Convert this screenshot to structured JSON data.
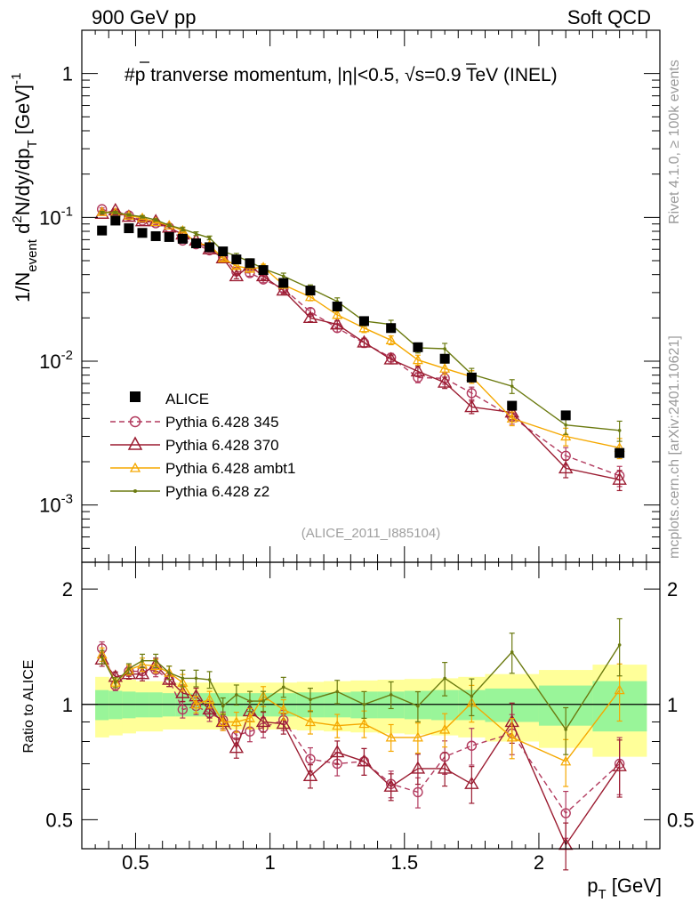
{
  "header": {
    "left": "900 GeV pp",
    "right": "Soft QCD"
  },
  "side_labels": {
    "rivet": "Rivet 4.1.0, ≥ 100k events",
    "site": "mcplots.cern.ch [arXiv:2401.10621]"
  },
  "colors": {
    "alice": "#000000",
    "p345": "#b23a5e",
    "p370": "#9b1c31",
    "ambt1": "#f5a800",
    "z2": "#6b7a10",
    "band_inner": "#99f599",
    "band_outer": "#ffff99"
  },
  "chart_data": [
    {
      "type": "scatter",
      "panel": "main",
      "title": "#p̄ tranverse momentum, |η|<0.5, √s=0.9 TeV (INEL)",
      "title_parts": [
        "#",
        "p",
        " tranverse momentum, ",
        "η",
        "|<0.5, ",
        "s",
        "=0.9 TeV (INEL)"
      ],
      "ylabel": "1/N_event d²N/dy/dp_T [GeV]⁻¹",
      "ylabel_parts": {
        "a": "1/N",
        "b": "event",
        "c": " d",
        "d": "2",
        "e": "N/dy/dp",
        "f": "T",
        "g": " [GeV]",
        "h": "-1"
      },
      "yscale": "log",
      "ylim": [
        0.0004,
        2
      ],
      "xlim": [
        0.3,
        2.45
      ],
      "y_ticks": [
        {
          "base": "10",
          "exp": "-3",
          "value": 0.001
        },
        {
          "base": "10",
          "exp": "-2",
          "value": 0.01
        },
        {
          "base": "10",
          "exp": "-1",
          "value": 0.1
        },
        {
          "base": "1",
          "exp": "",
          "value": 1
        }
      ],
      "watermark": "(ALICE_2011_I885104)",
      "legend_position": "lower-left",
      "x": [
        0.375,
        0.425,
        0.475,
        0.525,
        0.575,
        0.625,
        0.675,
        0.725,
        0.775,
        0.825,
        0.875,
        0.925,
        0.975,
        1.05,
        1.15,
        1.25,
        1.35,
        1.45,
        1.55,
        1.65,
        1.75,
        1.9,
        2.1,
        2.3
      ],
      "series": [
        {
          "name": "ALICE",
          "key": "alice",
          "style": "square",
          "values": [
            0.081,
            0.095,
            0.084,
            0.078,
            0.074,
            0.073,
            0.071,
            0.066,
            0.062,
            0.058,
            0.051,
            0.048,
            0.043,
            0.035,
            0.031,
            0.024,
            0.019,
            0.017,
            0.0125,
            0.0104,
            0.0077,
            0.0049,
            0.0042,
            0.0023
          ]
        },
        {
          "name": "Pythia 6.428 345",
          "key": "p345",
          "style": "circle-dashed",
          "values": [
            0.114,
            0.106,
            0.103,
            0.095,
            0.091,
            0.085,
            0.069,
            0.065,
            0.059,
            0.053,
            0.042,
            0.041,
            0.037,
            0.032,
            0.022,
            0.017,
            0.0134,
            0.0106,
            0.0077,
            0.0076,
            0.006,
            0.0041,
            0.0022,
            0.0016
          ]
        },
        {
          "name": "Pythia 6.428 370",
          "key": "p370",
          "style": "triangle-solid",
          "values": [
            0.106,
            0.112,
            0.101,
            0.094,
            0.094,
            0.085,
            0.076,
            0.069,
            0.06,
            0.052,
            0.039,
            0.046,
            0.039,
            0.031,
            0.02,
            0.018,
            0.0135,
            0.0103,
            0.0085,
            0.0071,
            0.0048,
            0.0044,
            0.0018,
            0.0015
          ]
        },
        {
          "name": "Pythia 6.428 ambt1",
          "key": "ambt1",
          "style": "triangle-solid",
          "values": [
            0.109,
            0.108,
            0.103,
            0.099,
            0.093,
            0.088,
            0.081,
            0.066,
            0.064,
            0.052,
            0.046,
            0.044,
            0.045,
            0.034,
            0.028,
            0.021,
            0.017,
            0.014,
            0.0102,
            0.0089,
            0.0078,
            0.004,
            0.003,
            0.0025
          ]
        },
        {
          "name": "Pythia 6.428 z2",
          "key": "z2",
          "style": "dot-solid",
          "values": [
            0.108,
            0.108,
            0.104,
            0.101,
            0.096,
            0.088,
            0.083,
            0.077,
            0.072,
            0.058,
            0.054,
            0.049,
            0.044,
            0.039,
            0.032,
            0.026,
            0.019,
            0.018,
            0.0124,
            0.0122,
            0.0081,
            0.0067,
            0.0036,
            0.0033
          ]
        }
      ],
      "legend": [
        "ALICE",
        "Pythia 6.428 345",
        "Pythia 6.428 370",
        "Pythia 6.428 ambt1",
        "Pythia 6.428 z2"
      ]
    },
    {
      "type": "line",
      "panel": "ratio",
      "ylabel": "Ratio to ALICE",
      "xlabel": "p_T [GeV]",
      "xlabel_parts": {
        "a": "p",
        "b": "T",
        "c": " [GeV]"
      },
      "xlim": [
        0.3,
        2.45
      ],
      "ylim": [
        0.42,
        2.35
      ],
      "yscale": "log",
      "x_ticks": [
        {
          "label": "0.5",
          "value": 0.5
        },
        {
          "label": "1",
          "value": 1
        },
        {
          "label": "1.5",
          "value": 1.5
        },
        {
          "label": "2",
          "value": 2
        }
      ],
      "y_ticks": [
        {
          "label": "0.5",
          "value": 0.5
        },
        {
          "label": "1",
          "value": 1
        },
        {
          "label": "2",
          "value": 2
        }
      ],
      "band_edges": [
        0.35,
        0.4,
        0.45,
        0.5,
        0.55,
        0.6,
        0.65,
        0.7,
        0.75,
        0.8,
        0.85,
        0.9,
        0.95,
        1.0,
        1.1,
        1.2,
        1.3,
        1.4,
        1.5,
        1.6,
        1.7,
        1.8,
        2.0,
        2.2,
        2.4
      ],
      "band_inner": [
        0.09,
        0.085,
        0.08,
        0.075,
        0.075,
        0.07,
        0.07,
        0.07,
        0.07,
        0.07,
        0.07,
        0.07,
        0.07,
        0.07,
        0.075,
        0.075,
        0.08,
        0.08,
        0.085,
        0.09,
        0.09,
        0.1,
        0.12,
        0.15
      ],
      "band_outer": [
        0.18,
        0.17,
        0.16,
        0.15,
        0.15,
        0.14,
        0.14,
        0.14,
        0.14,
        0.14,
        0.14,
        0.14,
        0.14,
        0.14,
        0.145,
        0.15,
        0.155,
        0.16,
        0.165,
        0.17,
        0.18,
        0.2,
        0.23,
        0.27
      ],
      "series": [
        {
          "name": "Pythia 6.428 345",
          "key": "p345",
          "values": [
            1.4,
            1.12,
            1.22,
            1.22,
            1.23,
            1.16,
            0.97,
            0.99,
            0.95,
            0.91,
            0.83,
            0.85,
            0.87,
            0.91,
            0.72,
            0.7,
            0.71,
            0.62,
            0.59,
            0.73,
            0.78,
            0.84,
            0.52,
            0.7
          ]
        },
        {
          "name": "Pythia 6.428 370",
          "key": "p370",
          "values": [
            1.31,
            1.18,
            1.2,
            1.2,
            1.27,
            1.16,
            1.07,
            1.05,
            0.97,
            0.9,
            0.77,
            0.96,
            0.9,
            0.89,
            0.65,
            0.75,
            0.71,
            0.61,
            0.68,
            0.68,
            0.62,
            0.9,
            0.43,
            0.69
          ]
        },
        {
          "name": "Pythia 6.428 ambt1",
          "key": "ambt1",
          "values": [
            1.35,
            1.14,
            1.23,
            1.27,
            1.26,
            1.21,
            1.14,
            1.0,
            1.03,
            0.9,
            0.9,
            0.92,
            1.05,
            0.97,
            0.9,
            0.88,
            0.89,
            0.82,
            0.82,
            0.86,
            1.01,
            0.82,
            0.71,
            1.09
          ]
        },
        {
          "name": "Pythia 6.428 z2",
          "key": "z2",
          "values": [
            1.33,
            1.14,
            1.24,
            1.3,
            1.3,
            1.21,
            1.17,
            1.17,
            1.16,
            0.99,
            1.06,
            1.02,
            1.02,
            1.11,
            1.03,
            1.08,
            1.0,
            1.06,
            0.99,
            1.17,
            1.05,
            1.37,
            0.86,
            1.43
          ]
        }
      ]
    }
  ]
}
